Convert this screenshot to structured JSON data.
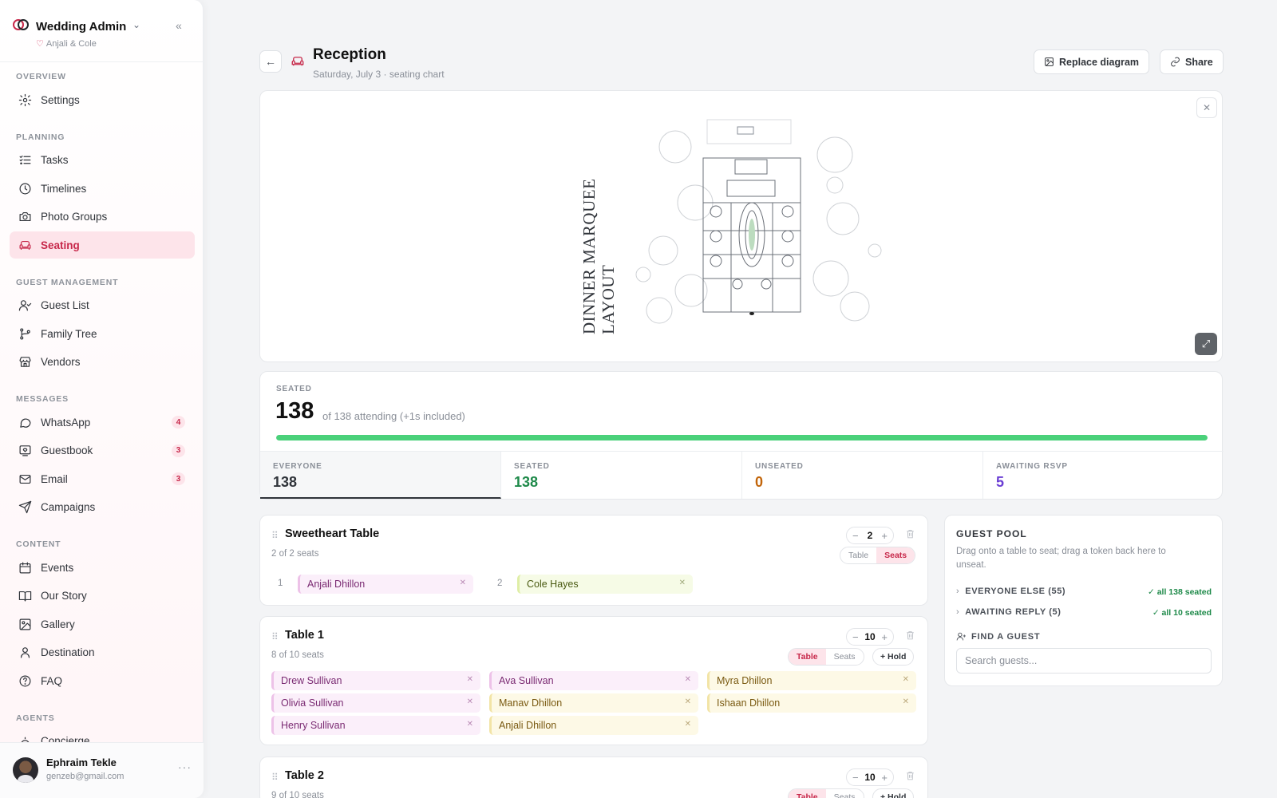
{
  "brand": {
    "title": "Wedding Admin",
    "couple": "Anjali & Cole"
  },
  "nav": {
    "sections": [
      {
        "label": "OVERVIEW",
        "items": [
          {
            "label": "Settings",
            "icon": "gear-icon"
          }
        ]
      },
      {
        "label": "PLANNING",
        "items": [
          {
            "label": "Tasks",
            "icon": "tasks-icon"
          },
          {
            "label": "Timelines",
            "icon": "clock-icon"
          },
          {
            "label": "Photo Groups",
            "icon": "camera-icon"
          },
          {
            "label": "Seating",
            "icon": "armchair-icon",
            "active": true
          }
        ]
      },
      {
        "label": "GUEST MANAGEMENT",
        "items": [
          {
            "label": "Guest List",
            "icon": "user-check-icon"
          },
          {
            "label": "Family Tree",
            "icon": "tree-icon"
          },
          {
            "label": "Vendors",
            "icon": "store-icon"
          }
        ]
      },
      {
        "label": "MESSAGES",
        "items": [
          {
            "label": "WhatsApp",
            "icon": "chat-icon",
            "badge": "4"
          },
          {
            "label": "Guestbook",
            "icon": "guestbook-icon",
            "badge": "3"
          },
          {
            "label": "Email",
            "icon": "mail-icon",
            "badge": "3"
          },
          {
            "label": "Campaigns",
            "icon": "send-icon"
          }
        ]
      },
      {
        "label": "CONTENT",
        "items": [
          {
            "label": "Events",
            "icon": "calendar-icon"
          },
          {
            "label": "Our Story",
            "icon": "book-icon"
          },
          {
            "label": "Gallery",
            "icon": "image-icon"
          },
          {
            "label": "Destination",
            "icon": "map-pin-icon"
          },
          {
            "label": "FAQ",
            "icon": "help-icon"
          }
        ]
      },
      {
        "label": "AGENTS",
        "items": [
          {
            "label": "Concierge",
            "icon": "concierge-icon"
          }
        ]
      }
    ]
  },
  "user": {
    "name": "Ephraim Tekle",
    "email": "genzeb@gmail.com"
  },
  "header": {
    "title": "Reception",
    "subtitle": "Saturday, July 3 · seating chart",
    "replace_label": "Replace diagram",
    "share_label": "Share"
  },
  "diagram": {
    "title_line1": "DINNER MARQUEE",
    "title_line2": "LAYOUT"
  },
  "summary": {
    "label": "SEATED",
    "seated": "138",
    "of_text": "of 138 attending (+1s included)",
    "progress": 1.0,
    "stats": [
      {
        "label": "EVERYONE",
        "value": "138",
        "color": "#30343a"
      },
      {
        "label": "SEATED",
        "value": "138",
        "color": "#1f8a4a"
      },
      {
        "label": "UNSEATED",
        "value": "0",
        "color": "#c2650a"
      },
      {
        "label": "AWAITING RSVP",
        "value": "5",
        "color": "#6b3fd4"
      }
    ]
  },
  "tables": [
    {
      "name": "Sweetheart Table",
      "seats_text": "2 of 2 seats",
      "count": "2",
      "modes": [
        "Table",
        "Seats"
      ],
      "active_mode": "Seats",
      "seats": [
        {
          "num": "1",
          "guest": "Anjali Dhillon",
          "tone": "pink"
        },
        {
          "num": "2",
          "guest": "Cole Hayes",
          "tone": "lime"
        }
      ]
    },
    {
      "name": "Table 1",
      "seats_text": "8 of 10 seats",
      "count": "10",
      "modes": [
        "Table",
        "Seats"
      ],
      "active_mode": "Table",
      "hold_label": "+ Hold",
      "guests": [
        {
          "name": "Drew Sullivan",
          "tone": "pink"
        },
        {
          "name": "Ava Sullivan",
          "tone": "pink"
        },
        {
          "name": "Myra Dhillon",
          "tone": "yellow"
        },
        {
          "name": "Olivia Sullivan",
          "tone": "pink"
        },
        {
          "name": "Manav Dhillon",
          "tone": "yellow"
        },
        {
          "name": "Ishaan Dhillon",
          "tone": "yellow"
        },
        {
          "name": "Henry Sullivan",
          "tone": "pink"
        },
        {
          "name": "Anjali Dhillon",
          "tone": "yellow"
        }
      ]
    },
    {
      "name": "Table 2",
      "seats_text": "9 of 10 seats",
      "count": "10",
      "modes": [
        "Table",
        "Seats"
      ],
      "active_mode": "Table",
      "hold_label": "+ Hold"
    }
  ],
  "guest_pool": {
    "title": "GUEST POOL",
    "description": "Drag onto a table to seat; drag a token back here to unseat.",
    "groups": [
      {
        "label": "EVERYONE ELSE (55)",
        "status": "all 138 seated"
      },
      {
        "label": "AWAITING REPLY (5)",
        "status": "all 10 seated"
      }
    ],
    "find_label": "FIND A GUEST",
    "search_placeholder": "Search guests..."
  }
}
